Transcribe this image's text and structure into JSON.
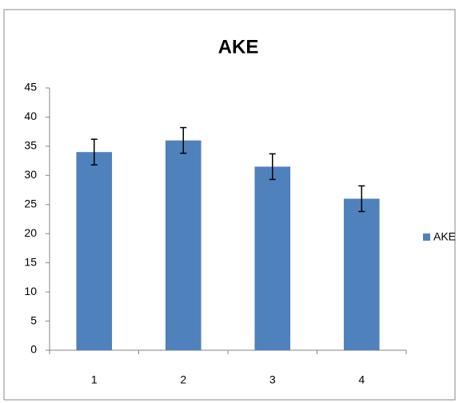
{
  "chart_data": {
    "type": "bar",
    "title": "AKE",
    "categories": [
      "1",
      "2",
      "3",
      "4"
    ],
    "series": [
      {
        "name": "AKE",
        "color": "#4f81bd",
        "values": [
          34,
          36,
          31.5,
          26
        ],
        "errors": [
          2.2,
          2.2,
          2.2,
          2.2
        ]
      }
    ],
    "ylim": [
      0,
      45
    ],
    "yticks": [
      0,
      5,
      10,
      15,
      20,
      25,
      30,
      35,
      40,
      45
    ],
    "grid": false,
    "legend": "right"
  }
}
